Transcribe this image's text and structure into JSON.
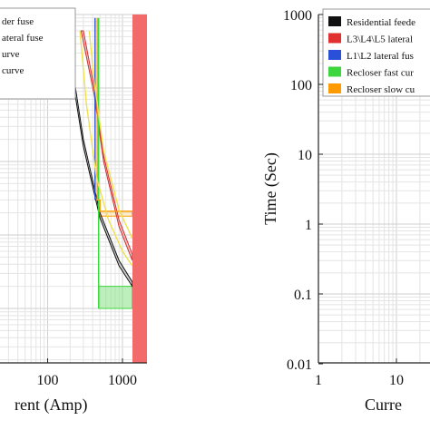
{
  "chart_data": [
    {
      "type": "line",
      "xscale": "log",
      "yscale": "log",
      "xlabel": "rent (Amp)",
      "xticks": [
        "100",
        "1000"
      ],
      "legend_placement": "top-left",
      "legend": [
        {
          "label": "der fuse",
          "color": "#111111"
        },
        {
          "label": "ateral fuse",
          "color": "#e03030"
        },
        {
          "label": "urve",
          "color": "#2a4fd8"
        },
        {
          "label": "curve",
          "color": "#ff9a00"
        }
      ],
      "bands": [
        {
          "name": "fast-band",
          "color": "#3ed63e",
          "points": [
            [
              480,
              0.1
            ],
            [
              480,
              0.2
            ],
            [
              1350,
              0.2
            ],
            [
              1350,
              0.1
            ]
          ]
        },
        {
          "name": "slow-band",
          "color": "#ff9a00",
          "points": [
            [
              490,
              1.8
            ],
            [
              490,
              2.1
            ],
            [
              1350,
              2.1
            ],
            [
              1350,
              1.8
            ]
          ]
        },
        {
          "name": "residential-band",
          "color": "#111111",
          "points": [
            [
              200,
              300
            ],
            [
              300,
              20
            ],
            [
              500,
              2
            ],
            [
              900,
              0.45
            ],
            [
              1350,
              0.23
            ],
            [
              1350,
              0.2
            ],
            [
              900,
              0.38
            ],
            [
              500,
              1.7
            ],
            [
              300,
              16
            ],
            [
              190,
              300
            ]
          ]
        },
        {
          "name": "lateral-band",
          "color": "#e03030",
          "points": [
            [
              300,
              600
            ],
            [
              420,
              100
            ],
            [
              560,
              12
            ],
            [
              900,
              1.6
            ],
            [
              1350,
              0.55
            ],
            [
              1350,
              0.45
            ],
            [
              900,
              1.3
            ],
            [
              560,
              10
            ],
            [
              420,
              80
            ],
            [
              280,
              600
            ]
          ]
        }
      ],
      "series": [
        {
          "name": "recloser-fast-line",
          "color": "#3ed63e",
          "x": [
            480,
            480,
            480
          ],
          "y": [
            900,
            0.2,
            0.1
          ]
        },
        {
          "name": "recloser-slow-line",
          "color": "#ff9a00",
          "x": [
            460,
            460,
            500,
            500,
            1350
          ],
          "y": [
            900,
            3,
            3,
            2.1,
            2.1
          ]
        },
        {
          "name": "l1l2-line",
          "color": "#2a4fd8",
          "x": [
            430,
            430
          ],
          "y": [
            900,
            3
          ]
        },
        {
          "name": "yellow-curve-1",
          "color": "#f0e050",
          "x": [
            270,
            330,
            450,
            650,
            1000,
            1350
          ],
          "y": [
            600,
            60,
            6,
            1.6,
            0.6,
            0.38
          ]
        },
        {
          "name": "yellow-curve-2",
          "color": "#f0e050",
          "x": [
            360,
            420,
            560,
            900,
            1350
          ],
          "y": [
            600,
            120,
            14,
            2.2,
            0.9
          ]
        }
      ]
    },
    {
      "type": "line",
      "xscale": "log",
      "yscale": "log",
      "ylabel": "Time (Sec)",
      "xlabel": "Curre",
      "yticks": [
        "1000",
        "100",
        "10",
        "1",
        "0.1",
        "0.01"
      ],
      "xticks": [
        "1",
        "10"
      ],
      "legend_placement": "top-right",
      "legend": [
        {
          "label": "Residential feede",
          "color": "#111111"
        },
        {
          "label": "L3\\L4\\L5 lateral",
          "color": "#e03030"
        },
        {
          "label": "L1\\L2 lateral fus",
          "color": "#2a4fd8"
        },
        {
          "label": "Recloser fast cur",
          "color": "#3ed63e"
        },
        {
          "label": "Recloser slow cu",
          "color": "#ff9a00"
        }
      ]
    }
  ]
}
